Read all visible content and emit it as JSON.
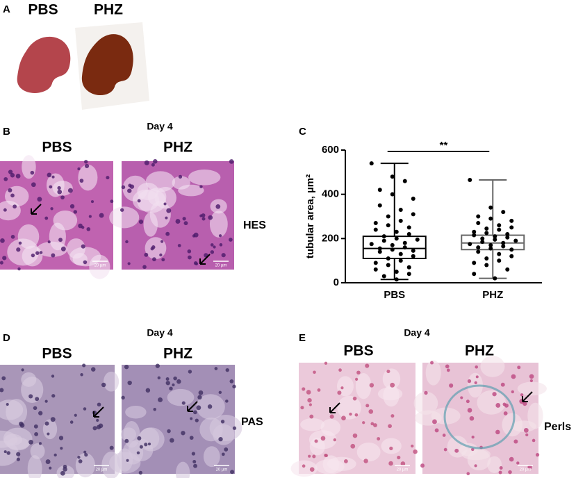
{
  "panels": {
    "a": {
      "label": "A",
      "columns": [
        "PBS",
        "PHZ"
      ]
    },
    "b": {
      "label": "B",
      "day": "Day 4",
      "columns": [
        "PBS",
        "PHZ"
      ],
      "stain": "HES",
      "scale_bar": "20 µm"
    },
    "c": {
      "label": "C"
    },
    "d": {
      "label": "D",
      "day": "Day 4",
      "columns": [
        "PBS",
        "PHZ"
      ],
      "stain": "PAS",
      "scale_bar": "20 µm"
    },
    "e": {
      "label": "E",
      "day": "Day 4",
      "columns": [
        "PBS",
        "PHZ"
      ],
      "stain": "Perls",
      "scale_bar": "20 µm"
    }
  },
  "chart_data": {
    "type": "box",
    "categories": [
      "PBS",
      "PHZ"
    ],
    "ylabel": "tubular area, µm²",
    "ylim": [
      0,
      600
    ],
    "yticks": [
      0,
      200,
      400,
      600
    ],
    "annotation": "**",
    "boxes": [
      {
        "min": 15,
        "q1": 110,
        "median": 155,
        "q3": 210,
        "max": 540
      },
      {
        "min": 20,
        "q1": 150,
        "median": 180,
        "q3": 215,
        "max": 465
      }
    ],
    "points": [
      [
        540,
        480,
        460,
        420,
        400,
        380,
        350,
        330,
        310,
        300,
        280,
        270,
        260,
        250,
        240,
        230,
        220,
        210,
        200,
        195,
        190,
        180,
        175,
        170,
        160,
        155,
        150,
        145,
        140,
        130,
        120,
        110,
        100,
        90,
        80,
        70,
        60,
        50,
        40,
        30,
        15
      ],
      [
        465,
        340,
        320,
        300,
        290,
        280,
        270,
        260,
        250,
        245,
        240,
        230,
        225,
        220,
        215,
        210,
        205,
        200,
        195,
        190,
        185,
        180,
        175,
        170,
        165,
        160,
        155,
        150,
        140,
        130,
        120,
        110,
        100,
        90,
        80,
        60,
        40,
        20
      ]
    ]
  }
}
